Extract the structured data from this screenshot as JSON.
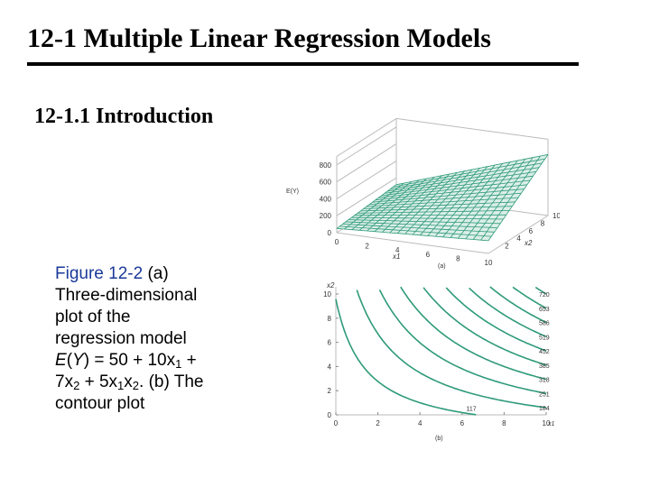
{
  "header": {
    "title": "12-1 Multiple Linear Regression Models",
    "section": "12-1.1 Introduction"
  },
  "caption": {
    "figure_label": "Figure 12-2",
    "part_a": "(a)",
    "line_1": "Three-dimensional",
    "line_2": "plot of the",
    "line_3": "regression model",
    "eq_e": "E",
    "eq_y": "Y",
    "eq_1": "= 50 + 10x",
    "eq_sub1": "1",
    "eq_2": " +",
    "eq_3": "7x",
    "eq_sub2": "2",
    "eq_4": " + 5x",
    "eq_sub3": "1",
    "eq_5": "x",
    "eq_sub4": "2",
    "eq_6": ". (b) The",
    "line_last": "contour plot"
  },
  "surface_plot": {
    "zlabel": "E(Y)",
    "z_ticks": [
      "0",
      "200",
      "400",
      "600",
      "800"
    ],
    "x1_ticks": [
      "0",
      "2",
      "4",
      "6",
      "8",
      "10"
    ],
    "x2_ticks": [
      "0",
      "2",
      "4",
      "6",
      "8",
      "10"
    ],
    "x1_label": "x1",
    "x2_label": "x2",
    "panel_label": "(a)",
    "surface_color": "#2e9a7a"
  },
  "chart_data": {
    "type": "contour",
    "model": "E(Y) = 50 + 10x1 + 7x2 + 5x1x2",
    "xlabel": "x1",
    "ylabel": "x2",
    "x_ticks": [
      "0",
      "2",
      "4",
      "6",
      "8",
      "10"
    ],
    "y_ticks": [
      "0",
      "2",
      "4",
      "6",
      "8",
      "10"
    ],
    "xlim": [
      0,
      10
    ],
    "ylim": [
      0,
      10
    ],
    "levels": [
      720,
      653,
      586,
      519,
      452,
      385,
      318,
      251,
      184,
      117
    ],
    "level_labels": [
      "720",
      "653",
      "586",
      "519",
      "452",
      "385",
      "318",
      "251",
      "184",
      "117"
    ],
    "panel_label": "(b)",
    "line_color": "#2e9a7a"
  }
}
